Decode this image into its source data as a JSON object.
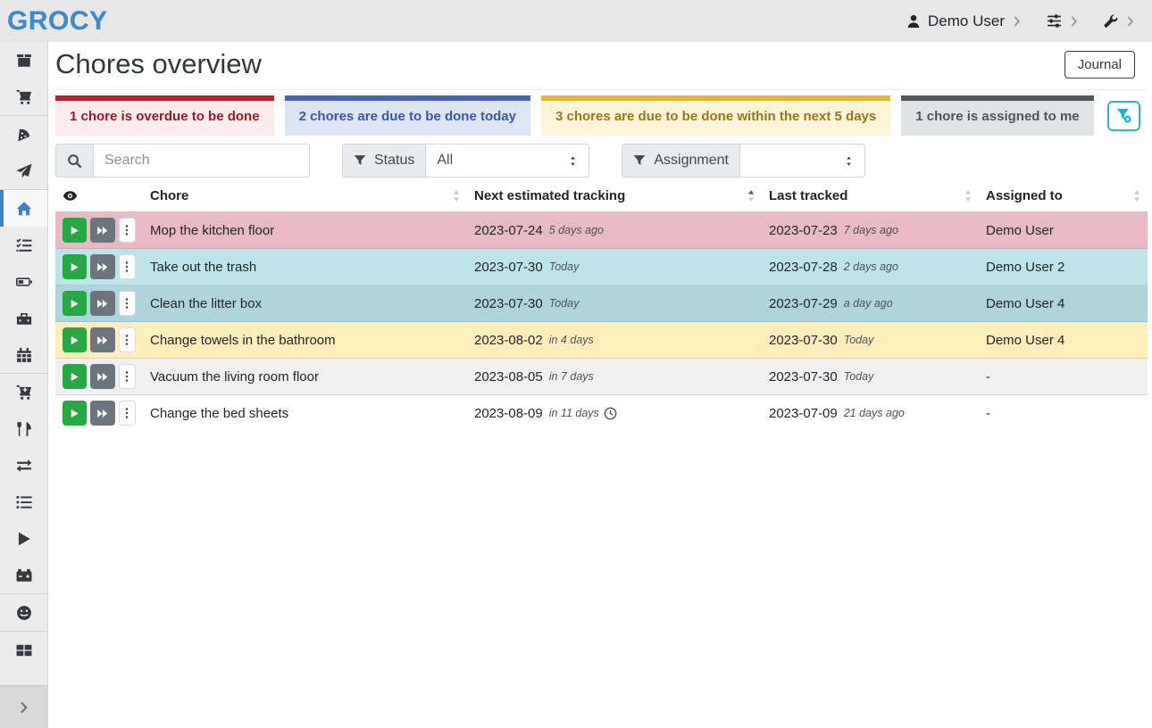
{
  "brand": "GROCY",
  "topbar": {
    "user_label": "Demo User"
  },
  "page": {
    "title": "Chores overview",
    "journal_button": "Journal"
  },
  "alerts": [
    {
      "id": "overdue",
      "text": "1 chore is overdue to be done",
      "accent": "#b52531",
      "bg": "#fcecee",
      "fg": "#9e1b26"
    },
    {
      "id": "due-today",
      "text": "2 chores are due to be done today",
      "accent": "#4565b1",
      "bg": "#dde4f4",
      "fg": "#3d57a8"
    },
    {
      "id": "due-soon",
      "text": "3 chores are due to be done within the next 5 days",
      "accent": "#e2b53c",
      "bg": "#fcf4d9",
      "fg": "#97791b"
    },
    {
      "id": "assigned-me",
      "text": "1 chore is assigned to me",
      "accent": "#54585c",
      "bg": "#e2e3e4",
      "fg": "#505559"
    }
  ],
  "filters": {
    "search_placeholder": "Search",
    "status_label": "Status",
    "status_value": "All",
    "assignment_label": "Assignment",
    "assignment_value": ""
  },
  "table": {
    "columns": [
      {
        "label": "Chore",
        "sort": "none"
      },
      {
        "label": "Next estimated tracking",
        "sort": "asc"
      },
      {
        "label": "Last tracked",
        "sort": "none"
      },
      {
        "label": "Assigned to",
        "sort": "none"
      }
    ],
    "row_colors": {
      "danger": "#e8bac5",
      "info": "#bee4ea",
      "info-dark": "#aed5dc",
      "warning": "#ffeeba",
      "striped": "#f0f0f1",
      "plain": "#ffffff"
    },
    "rows": [
      {
        "chore": "Mop the kitchen floor",
        "next": "2023-07-24",
        "next_rel": "5 days ago",
        "last": "2023-07-23",
        "last_rel": "7 days ago",
        "assigned": "Demo User",
        "variant": "danger",
        "clock": false
      },
      {
        "chore": "Take out the trash",
        "next": "2023-07-30",
        "next_rel": "Today",
        "last": "2023-07-28",
        "last_rel": "2 days ago",
        "assigned": "Demo User 2",
        "variant": "info",
        "clock": false
      },
      {
        "chore": "Clean the litter box",
        "next": "2023-07-30",
        "next_rel": "Today",
        "last": "2023-07-29",
        "last_rel": "a day ago",
        "assigned": "Demo User 4",
        "variant": "info-dark",
        "clock": false
      },
      {
        "chore": "Change towels in the bathroom",
        "next": "2023-08-02",
        "next_rel": "in 4 days",
        "last": "2023-07-30",
        "last_rel": "Today",
        "assigned": "Demo User 4",
        "variant": "warning",
        "clock": false
      },
      {
        "chore": "Vacuum the living room floor",
        "next": "2023-08-05",
        "next_rel": "in 7 days",
        "last": "2023-07-30",
        "last_rel": "Today",
        "assigned": "-",
        "variant": "striped",
        "clock": false
      },
      {
        "chore": "Change the bed sheets",
        "next": "2023-08-09",
        "next_rel": "in 11 days",
        "last": "2023-07-09",
        "last_rel": "21 days ago",
        "assigned": "-",
        "variant": "plain",
        "clock": true
      }
    ]
  },
  "sidebar": {
    "items": [
      {
        "name": "stock-overview",
        "icon": "box"
      },
      {
        "name": "shopping-list",
        "icon": "cart",
        "divider_after": true
      },
      {
        "name": "recipes",
        "icon": "pizza"
      },
      {
        "name": "meal-plan",
        "icon": "paper-plane",
        "divider_after": true
      },
      {
        "name": "chores-overview",
        "icon": "home",
        "active": true
      },
      {
        "name": "tasks",
        "icon": "checklist"
      },
      {
        "name": "batteries-overview",
        "icon": "battery"
      },
      {
        "name": "equipment",
        "icon": "toolbox"
      },
      {
        "name": "calendar",
        "icon": "calendar",
        "divider_after": true
      },
      {
        "name": "purchase",
        "icon": "cart-plus"
      },
      {
        "name": "consume",
        "icon": "utensils"
      },
      {
        "name": "transfer",
        "icon": "exchange"
      },
      {
        "name": "inventory",
        "icon": "list"
      },
      {
        "name": "chore-tracking",
        "icon": "play"
      },
      {
        "name": "battery-tracking",
        "icon": "car-battery",
        "divider_after": true
      },
      {
        "name": "users",
        "icon": "smiley",
        "divider_after": true
      },
      {
        "name": "reports",
        "icon": "table"
      }
    ]
  }
}
